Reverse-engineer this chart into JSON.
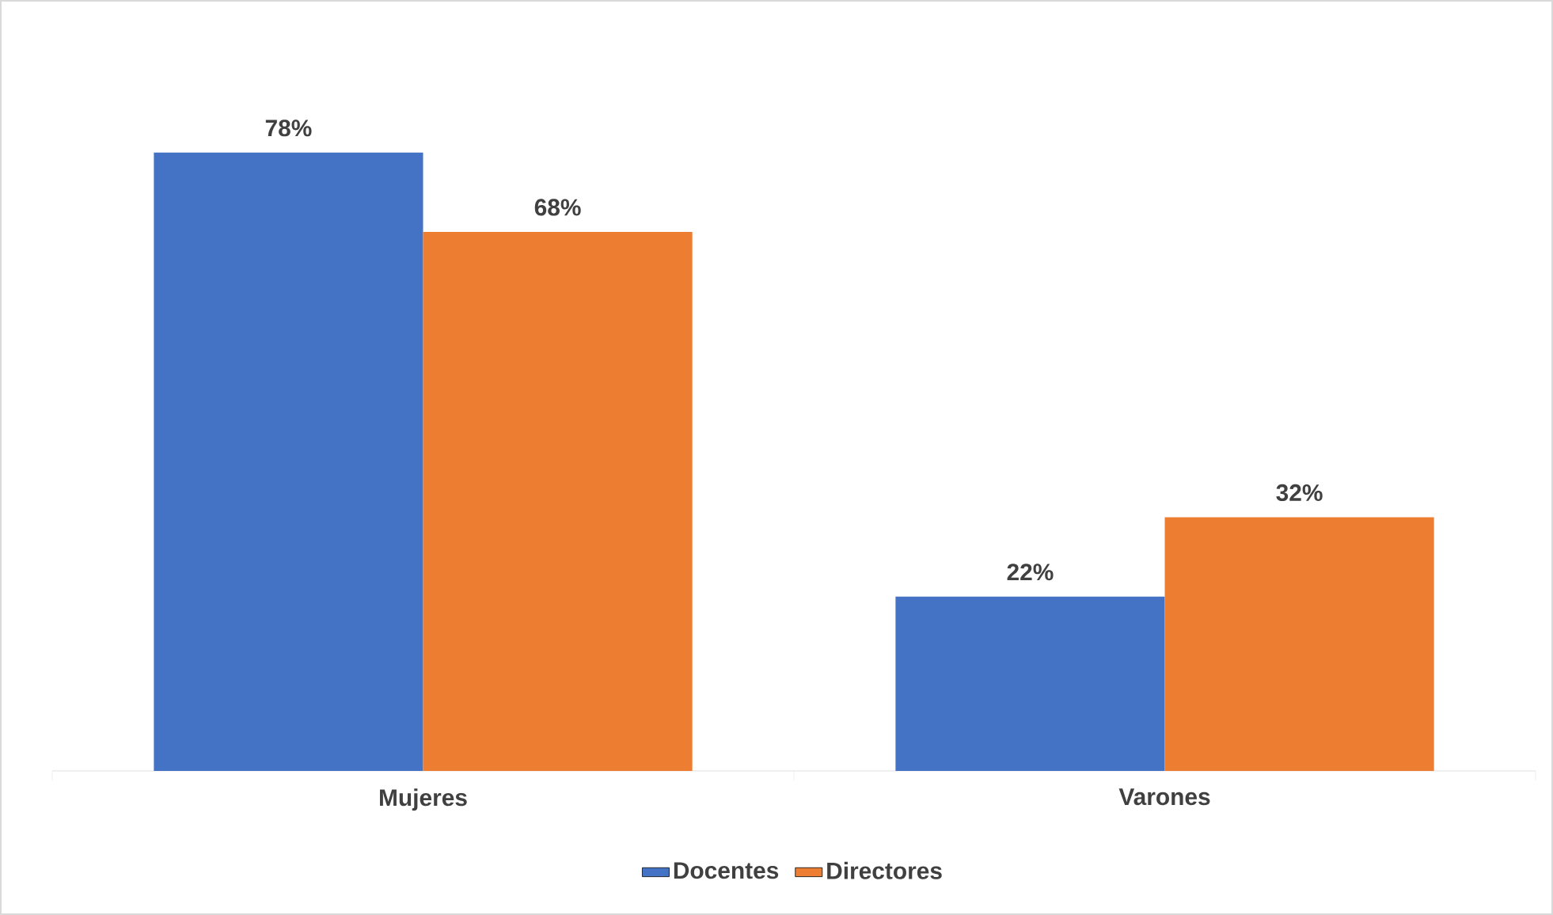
{
  "chart_data": {
    "type": "bar",
    "categories": [
      "Mujeres",
      "Varones"
    ],
    "series": [
      {
        "name": "Docentes",
        "color": "#4472c4",
        "values": [
          78,
          22
        ],
        "value_labels": [
          "78%",
          "22%"
        ]
      },
      {
        "name": "Directores",
        "color": "#ed7d31",
        "values": [
          68,
          32
        ],
        "value_labels": [
          "68%",
          "32%"
        ]
      }
    ],
    "legend": "bottom"
  }
}
